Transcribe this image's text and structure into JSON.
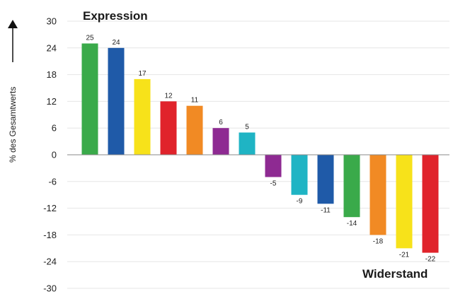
{
  "chart_data": {
    "type": "bar",
    "title": "",
    "xlabel": "",
    "ylabel": "% des Gesamtwerts",
    "ylim": [
      -30,
      30
    ],
    "yticks": [
      30,
      24,
      18,
      12,
      6,
      0,
      -6,
      -12,
      -18,
      -24,
      -30
    ],
    "grid": true,
    "annotations": [
      "Expression",
      "Widerstand"
    ],
    "values": [
      25,
      24,
      17,
      12,
      11,
      6,
      5,
      -5,
      -9,
      -11,
      -14,
      -18,
      -21,
      -22
    ],
    "colors": [
      "#3aaa4a",
      "#1f5aa8",
      "#f7e21a",
      "#e0232b",
      "#f18a24",
      "#8e2a92",
      "#1fb4c4",
      "#8e2a92",
      "#1fb4c4",
      "#1f5aa8",
      "#3aaa4a",
      "#f18a24",
      "#f7e21a",
      "#e0232b"
    ]
  }
}
